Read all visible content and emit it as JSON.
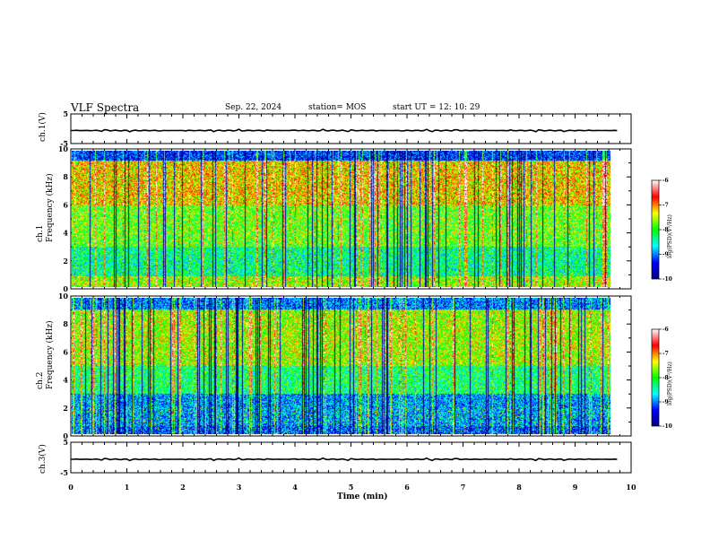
{
  "header": {
    "title": "VLF Spectra",
    "date": "Sep. 22, 2024",
    "station": "station= MOS",
    "start": "start  UT =   12: 10: 29"
  },
  "chart_data": [
    {
      "type": "line",
      "panel": "ch1-waveform",
      "ylabel": "ch.1(V)",
      "ylim": [
        -5,
        5
      ],
      "yticks": [
        "5",
        "-5"
      ],
      "x": [
        0,
        9.8
      ],
      "values": [
        0,
        0
      ],
      "style": "flat trace near zero"
    },
    {
      "type": "heatmap",
      "panel": "ch1-spectrogram",
      "ylabel": "ch.1\nFrequency (kHz)",
      "ylim": [
        0,
        10
      ],
      "yticks": [
        "0",
        "2",
        "4",
        "6",
        "8",
        "10"
      ],
      "xlim": [
        0,
        9.8
      ],
      "colorbar": {
        "label": "log(PSD)(V²/Hz)",
        "range": [
          -10,
          -6
        ],
        "ticks": [
          "-6",
          "-7",
          "-8",
          "-9",
          "-10"
        ]
      }
    },
    {
      "type": "heatmap",
      "panel": "ch2-spectrogram",
      "ylabel": "ch.2\nFrequency (kHz)",
      "ylim": [
        0,
        10
      ],
      "yticks": [
        "0",
        "2",
        "4",
        "6",
        "8",
        "10"
      ],
      "xlim": [
        0,
        9.8
      ],
      "colorbar": {
        "label": "log(PSD)(V²/Hz)",
        "range": [
          -10,
          -6
        ],
        "ticks": [
          "-6",
          "-7",
          "-8",
          "-9",
          "-10"
        ]
      }
    },
    {
      "type": "line",
      "panel": "ch3-waveform",
      "ylabel": "ch.3(V)",
      "ylim": [
        -5,
        5
      ],
      "yticks": [
        "5",
        "-5"
      ],
      "x": [
        0,
        9.8
      ],
      "values": [
        0,
        0
      ],
      "style": "flat trace near zero"
    }
  ],
  "xaxis": {
    "label": "Time  (min)",
    "range": [
      0,
      10
    ],
    "ticks": [
      "0",
      "1",
      "2",
      "3",
      "4",
      "5",
      "6",
      "7",
      "8",
      "9",
      "10"
    ]
  },
  "colors": {
    "jet": [
      "#000080",
      "#0000ff",
      "#00ffff",
      "#00ff00",
      "#ffff00",
      "#ff0000",
      "#ffffff"
    ]
  }
}
